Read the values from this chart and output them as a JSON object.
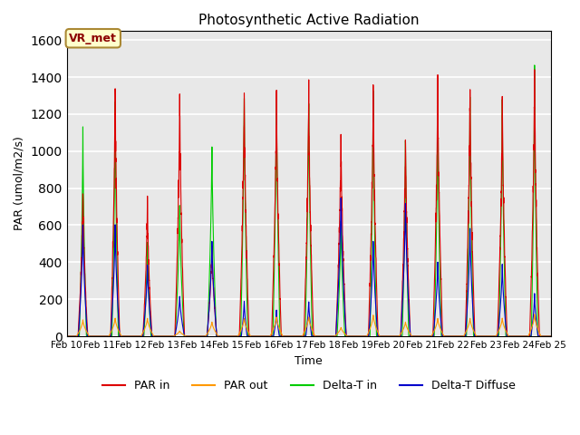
{
  "title": "Photosynthetic Active Radiation",
  "xlabel": "Time",
  "ylabel": "PAR (umol/m2/s)",
  "ylim": [
    0,
    1650
  ],
  "yticks": [
    0,
    200,
    400,
    600,
    800,
    1000,
    1200,
    1400,
    1600
  ],
  "xtick_labels": [
    "Feb 10",
    "Feb 11",
    "Feb 12",
    "Feb 13",
    "Feb 14",
    "Feb 15",
    "Feb 16",
    "Feb 17",
    "Feb 18",
    "Feb 19",
    "Feb 20",
    "Feb 21",
    "Feb 22",
    "Feb 23",
    "Feb 24",
    "Feb 25"
  ],
  "legend_label_box": "VR_met",
  "legend_box_facecolor": "#ffffcc",
  "legend_box_edgecolor": "#aa8833",
  "background_color": "#e8e8e8",
  "grid_color": "#ffffff",
  "series": {
    "par_in_color": "#dd0000",
    "par_out_color": "#ff9900",
    "delta_t_in_color": "#00cc00",
    "delta_t_diffuse_color": "#0000cc"
  },
  "days": 15,
  "n_points_per_day": 288,
  "peaks": {
    "par_in": [
      820,
      1440,
      760,
      1350,
      520,
      1390,
      1410,
      1380,
      1130,
      1420,
      1130,
      1440,
      1420,
      1330,
      1480
    ],
    "par_out": [
      90,
      100,
      100,
      30,
      80,
      100,
      110,
      110,
      50,
      120,
      80,
      100,
      100,
      100,
      120
    ],
    "delta_t_in": [
      1150,
      1310,
      530,
      740,
      1080,
      1380,
      1400,
      1370,
      670,
      1430,
      1130,
      1260,
      1350,
      1320,
      1490
    ],
    "delta_t_dif": [
      610,
      620,
      400,
      225,
      540,
      205,
      155,
      205,
      795,
      545,
      755,
      420,
      605,
      400,
      235
    ]
  },
  "widths": {
    "par_in": [
      0.3,
      0.28,
      0.28,
      0.3,
      0.3,
      0.3,
      0.3,
      0.3,
      0.32,
      0.3,
      0.3,
      0.3,
      0.3,
      0.3,
      0.3
    ],
    "par_out": [
      0.4,
      0.4,
      0.4,
      0.4,
      0.4,
      0.4,
      0.4,
      0.4,
      0.4,
      0.4,
      0.4,
      0.4,
      0.4,
      0.4,
      0.4
    ],
    "delta_t_in": [
      0.22,
      0.2,
      0.22,
      0.28,
      0.28,
      0.22,
      0.22,
      0.22,
      0.24,
      0.2,
      0.2,
      0.22,
      0.22,
      0.22,
      0.2
    ],
    "delta_t_dif": [
      0.28,
      0.28,
      0.28,
      0.3,
      0.3,
      0.18,
      0.18,
      0.18,
      0.32,
      0.28,
      0.3,
      0.28,
      0.28,
      0.28,
      0.22
    ]
  }
}
